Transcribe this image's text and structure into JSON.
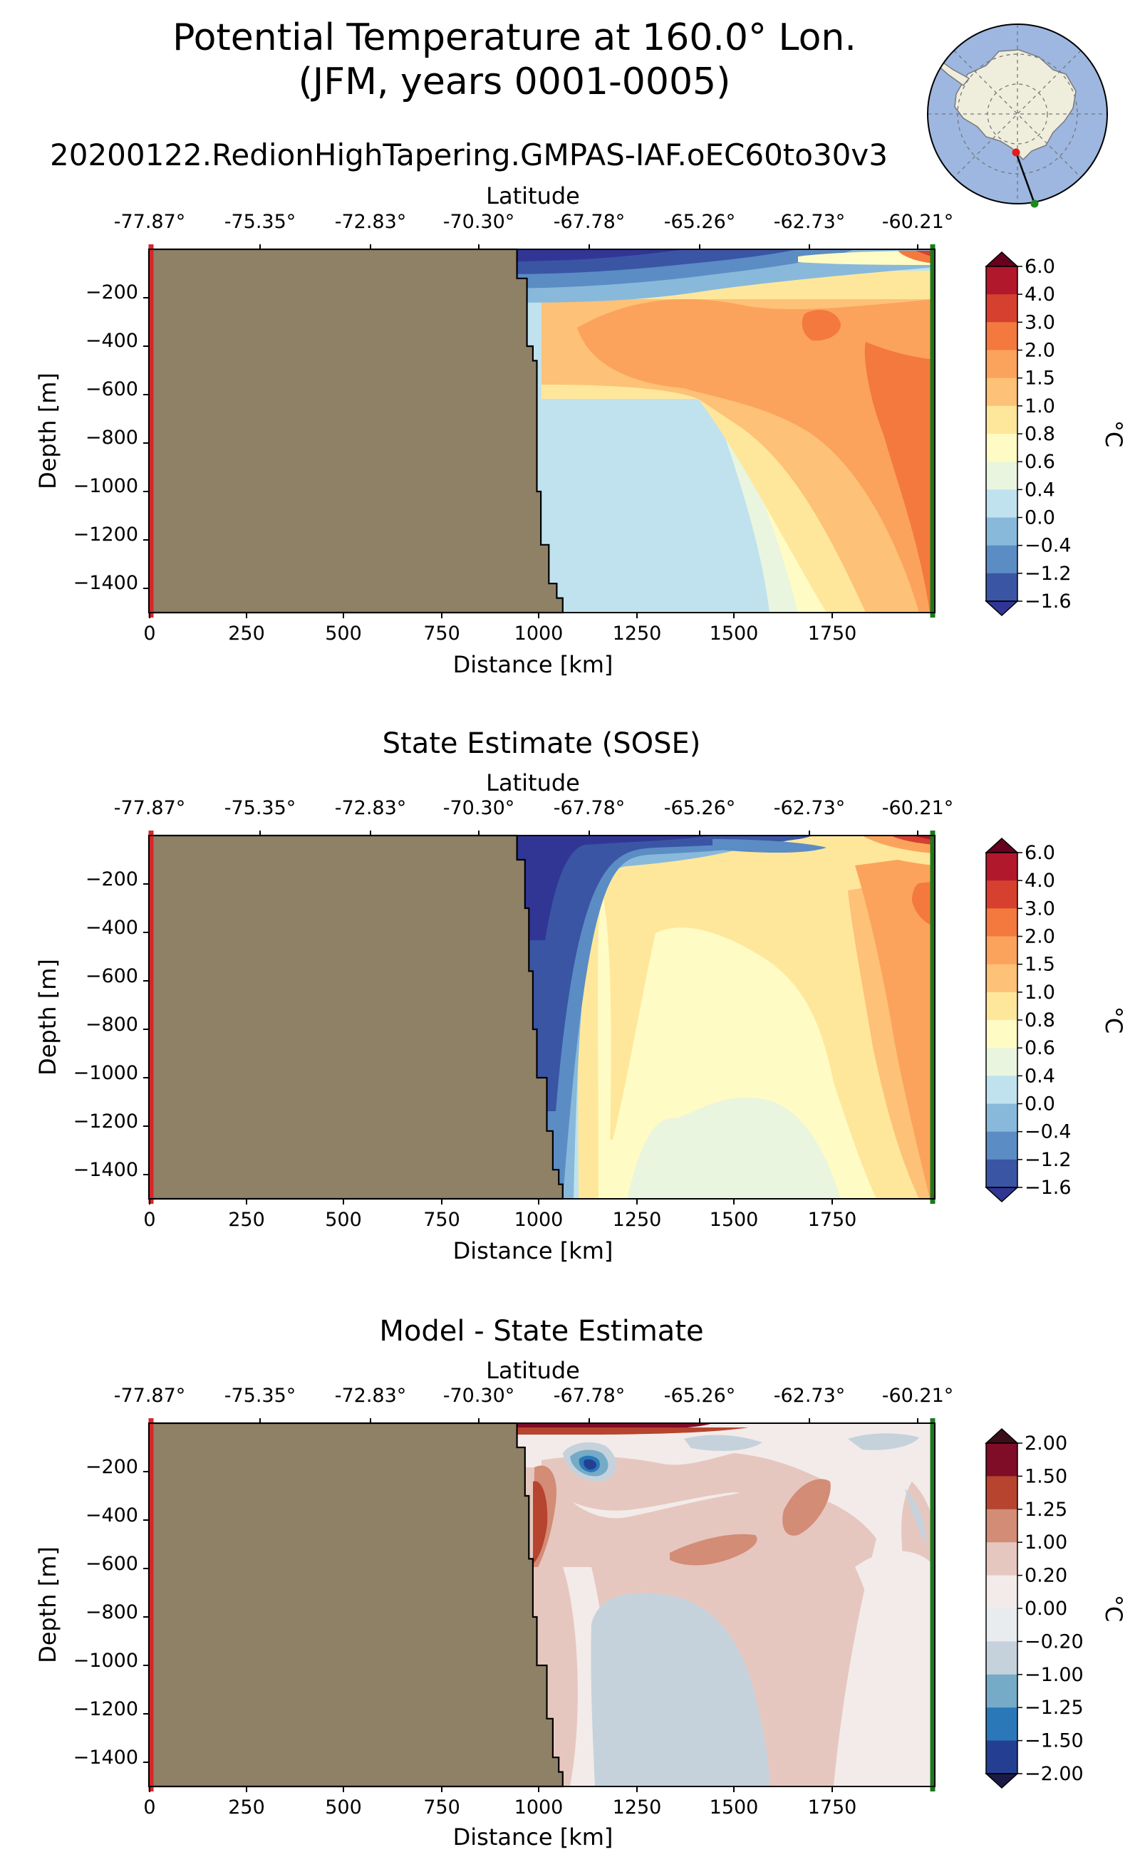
{
  "figure": {
    "title_line1": "Potential Temperature at 160.0° Lon.",
    "title_line2": "(JFM, years 0001-0005)",
    "subtitle": "20200122.RedionHighTapering.GMPAS-IAF.oEC60to30v3"
  },
  "colors": {
    "land": "#8f8166",
    "south_marker": "#d62728",
    "north_marker": "#1a7a1a",
    "globe_ocean": "#9db7e0",
    "globe_land": "#efeedd"
  },
  "inset_map": {
    "type": "south-polar-stereographic",
    "marker_colors": [
      "red",
      "green"
    ]
  },
  "chart_data": [
    {
      "type": "contourf",
      "id": "model",
      "title": "",
      "xlabel": "Distance [km]",
      "ylabel": "Depth [m]",
      "top_axis_label": "Latitude",
      "xlim": [
        0,
        1975
      ],
      "ylim": [
        -1500,
        0
      ],
      "xticks": [
        "0",
        "250",
        "500",
        "750",
        "1000",
        "1250",
        "1500",
        "1750"
      ],
      "yticks": [
        "−200",
        "−400",
        "−600",
        "−800",
        "−1000",
        "−1200",
        "−1400"
      ],
      "top_ticks": [
        "-77.87°",
        "-75.35°",
        "-72.83°",
        "-70.30°",
        "-67.78°",
        "-65.26°",
        "-62.73°",
        "-60.21°"
      ],
      "colorbar": {
        "label": "°C",
        "levels": [
          "6.0",
          "4.0",
          "3.0",
          "2.0",
          "1.5",
          "1.0",
          "0.8",
          "0.6",
          "0.4",
          "0.0",
          "−0.4",
          "−1.2",
          "−1.6"
        ],
        "colors": [
          "#67001f",
          "#b2182b",
          "#d6402f",
          "#f4793f",
          "#fba35c",
          "#fdc177",
          "#fee79b",
          "#fffbc4",
          "#e9f5de",
          "#bfe2ee",
          "#88b9db",
          "#5b8cc4",
          "#3a55a4",
          "#313695"
        ]
      },
      "bathymetry": [
        [
          925,
          0
        ],
        [
          925,
          -120
        ],
        [
          950,
          -120
        ],
        [
          950,
          -400
        ],
        [
          965,
          -400
        ],
        [
          965,
          -460
        ],
        [
          975,
          -460
        ],
        [
          975,
          -1000
        ],
        [
          985,
          -1000
        ],
        [
          985,
          -1220
        ],
        [
          1005,
          -1220
        ],
        [
          1005,
          -1380
        ],
        [
          1025,
          -1380
        ],
        [
          1025,
          -1440
        ],
        [
          1040,
          -1440
        ],
        [
          1040,
          -1500
        ]
      ]
    },
    {
      "type": "contourf",
      "id": "sose",
      "title": "State Estimate (SOSE)",
      "xlabel": "Distance [km]",
      "ylabel": "Depth [m]",
      "top_axis_label": "Latitude",
      "xlim": [
        0,
        1975
      ],
      "ylim": [
        -1500,
        0
      ],
      "xticks": [
        "0",
        "250",
        "500",
        "750",
        "1000",
        "1250",
        "1500",
        "1750"
      ],
      "yticks": [
        "−200",
        "−400",
        "−600",
        "−800",
        "−1000",
        "−1200",
        "−1400"
      ],
      "top_ticks": [
        "-77.87°",
        "-75.35°",
        "-72.83°",
        "-70.30°",
        "-67.78°",
        "-65.26°",
        "-62.73°",
        "-60.21°"
      ],
      "colorbar": {
        "label": "°C",
        "levels": [
          "6.0",
          "4.0",
          "3.0",
          "2.0",
          "1.5",
          "1.0",
          "0.8",
          "0.6",
          "0.4",
          "0.0",
          "−0.4",
          "−1.2",
          "−1.6"
        ],
        "colors": [
          "#67001f",
          "#b2182b",
          "#d6402f",
          "#f4793f",
          "#fba35c",
          "#fdc177",
          "#fee79b",
          "#fffbc4",
          "#e9f5de",
          "#bfe2ee",
          "#88b9db",
          "#5b8cc4",
          "#3a55a4",
          "#313695"
        ]
      },
      "bathymetry": [
        [
          925,
          0
        ],
        [
          925,
          -100
        ],
        [
          945,
          -100
        ],
        [
          945,
          -300
        ],
        [
          955,
          -300
        ],
        [
          955,
          -560
        ],
        [
          965,
          -560
        ],
        [
          965,
          -800
        ],
        [
          975,
          -800
        ],
        [
          975,
          -1000
        ],
        [
          1000,
          -1000
        ],
        [
          1000,
          -1220
        ],
        [
          1015,
          -1220
        ],
        [
          1015,
          -1380
        ],
        [
          1030,
          -1380
        ],
        [
          1030,
          -1440
        ],
        [
          1040,
          -1440
        ],
        [
          1040,
          -1500
        ]
      ]
    },
    {
      "type": "contourf",
      "id": "diff",
      "title": "Model - State Estimate",
      "xlabel": "Distance [km]",
      "ylabel": "Depth [m]",
      "top_axis_label": "Latitude",
      "xlim": [
        0,
        1975
      ],
      "ylim": [
        -1500,
        0
      ],
      "xticks": [
        "0",
        "250",
        "500",
        "750",
        "1000",
        "1250",
        "1500",
        "1750"
      ],
      "yticks": [
        "−200",
        "−400",
        "−600",
        "−800",
        "−1000",
        "−1200",
        "−1400"
      ],
      "top_ticks": [
        "-77.87°",
        "-75.35°",
        "-72.83°",
        "-70.30°",
        "-67.78°",
        "-65.26°",
        "-62.73°",
        "-60.21°"
      ],
      "colorbar": {
        "label": "°C",
        "levels": [
          "2.00",
          "1.50",
          "1.25",
          "1.00",
          "0.20",
          "0.00",
          "−0.20",
          "−1.00",
          "−1.25",
          "−1.50",
          "−2.00"
        ],
        "colors": [
          "#3b0f17",
          "#7f0d27",
          "#b7442e",
          "#d38c76",
          "#e6c7bf",
          "#f2ebe9",
          "#e8ecef",
          "#c5d2dc",
          "#75abc6",
          "#2a78b8",
          "#243f92",
          "#1b1a46"
        ]
      },
      "bathymetry": [
        [
          925,
          0
        ],
        [
          925,
          -100
        ],
        [
          945,
          -100
        ],
        [
          945,
          -300
        ],
        [
          955,
          -300
        ],
        [
          955,
          -560
        ],
        [
          965,
          -560
        ],
        [
          965,
          -800
        ],
        [
          975,
          -800
        ],
        [
          975,
          -1000
        ],
        [
          1000,
          -1000
        ],
        [
          1000,
          -1220
        ],
        [
          1015,
          -1220
        ],
        [
          1015,
          -1380
        ],
        [
          1030,
          -1380
        ],
        [
          1030,
          -1440
        ],
        [
          1040,
          -1440
        ],
        [
          1040,
          -1500
        ]
      ]
    }
  ]
}
